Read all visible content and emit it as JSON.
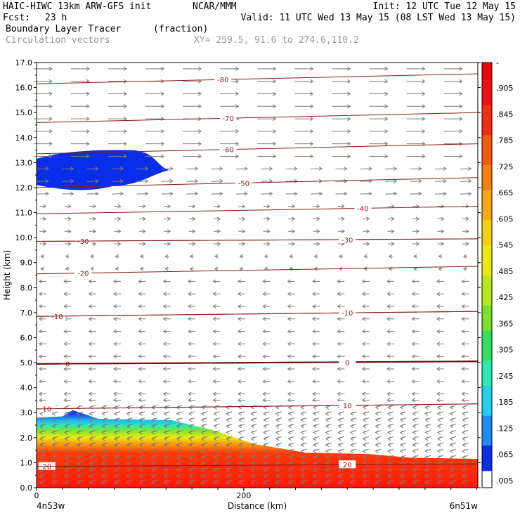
{
  "header": {
    "model": "HAIC-HIWC 13km ARW-GFS init",
    "org": "NCAR/MMM",
    "init": "Init: 12 UTC Tue 12 May 15",
    "fcst_label": "Fcst:",
    "fcst_value": "23 h",
    "valid": "Valid: 11 UTC Wed 13 May 15 (08 LST Wed 13 May 15)",
    "field1_name": "Boundary Layer Tracer",
    "field1_units": "(fraction)",
    "field2_name": "Circulation vectors",
    "xy": "XY= 259.5, 91.6 to 274.6,110.2"
  },
  "chart_data": {
    "type": "heatmap",
    "title": "Boundary Layer Tracer (fraction)",
    "xlabel": "Distance (km)",
    "ylabel": "Height (km)",
    "xlim": [
      0,
      426
    ],
    "ylim": [
      0,
      17
    ],
    "x_ticks": [
      0,
      200
    ],
    "y_ticks": [
      "0.0",
      "1.0",
      "2.0",
      "3.0",
      "4.0",
      "5.0",
      "6.0",
      "7.0",
      "8.0",
      "9.0",
      "10.0",
      "11.0",
      "12.0",
      "13.0",
      "14.0",
      "15.0",
      "16.0",
      "17.0"
    ],
    "x_endpoints": {
      "left": "4n53w",
      "right": "6n51w"
    },
    "colorbar": {
      "labels": [
        ".005",
        ".065",
        ".125",
        ".185",
        ".245",
        ".305",
        ".365",
        ".425",
        ".485",
        ".545",
        ".605",
        ".665",
        ".725",
        ".785",
        ".845",
        ".905"
      ],
      "top_label": "-",
      "colors": [
        "#ffffff",
        "#0a2ee8",
        "#1f8cf0",
        "#25d0ee",
        "#2ee8b0",
        "#36e05a",
        "#7ae22a",
        "#b8e818",
        "#e8ea12",
        "#f5d010",
        "#f8a810",
        "#f88010",
        "#f55a10",
        "#f03010",
        "#ee1010",
        "#e80a0a"
      ]
    },
    "tracer_surface": [
      {
        "x": 0,
        "top": 2.8
      },
      {
        "x": 25,
        "top": 2.85
      },
      {
        "x": 35,
        "top": 3.1
      },
      {
        "x": 60,
        "top": 2.75
      },
      {
        "x": 130,
        "top": 2.7
      },
      {
        "x": 170,
        "top": 2.3
      },
      {
        "x": 210,
        "top": 1.75
      },
      {
        "x": 260,
        "top": 1.4
      },
      {
        "x": 320,
        "top": 1.35
      },
      {
        "x": 360,
        "top": 1.2
      },
      {
        "x": 426,
        "top": 1.15
      }
    ],
    "upper_tracer": {
      "x_start": 0,
      "x_end": 128,
      "bottom": 11.9,
      "top": 13.5
    },
    "isotherms": [
      {
        "label": "-80",
        "y0": 16.15,
        "y1": 16.55,
        "label_x": 180
      },
      {
        "label": "-70",
        "y0": 14.6,
        "y1": 15.0,
        "label_x": 185
      },
      {
        "label": "-60",
        "y0": 13.35,
        "y1": 13.75,
        "label_x": 185
      },
      {
        "label": "-50",
        "y0": 12.0,
        "y1": 12.4,
        "label_x": 200
      },
      {
        "label": "-40",
        "y0": 10.95,
        "y1": 11.25,
        "label_x": 315
      },
      {
        "label": "-30",
        "y0": 9.85,
        "y1": 9.95,
        "label_x": 45
      },
      {
        "label": "-30",
        "y0": 9.85,
        "y1": 9.95,
        "label_x": 300
      },
      {
        "label": "-20",
        "y0": 8.55,
        "y1": 8.85,
        "label_x": 45
      },
      {
        "label": "-10",
        "y0": 6.85,
        "y1": 7.05,
        "label_x": 20
      },
      {
        "label": "-10",
        "y0": 6.85,
        "y1": 7.05,
        "label_x": 300
      },
      {
        "label": "0",
        "y0": 4.95,
        "y1": 5.05,
        "label_x": 30
      },
      {
        "label": "0",
        "y0": 4.95,
        "y1": 5.05,
        "label_x": 300
      },
      {
        "label": "10",
        "y0": 3.15,
        "y1": 3.35,
        "label_x": 10
      },
      {
        "label": "10",
        "y0": 3.15,
        "y1": 3.35,
        "label_x": 300
      },
      {
        "label": "20",
        "y0": 0.85,
        "y1": 0.95,
        "label_x": 10
      },
      {
        "label": "20",
        "y0": 0.85,
        "y1": 0.95,
        "label_x": 300
      }
    ]
  }
}
